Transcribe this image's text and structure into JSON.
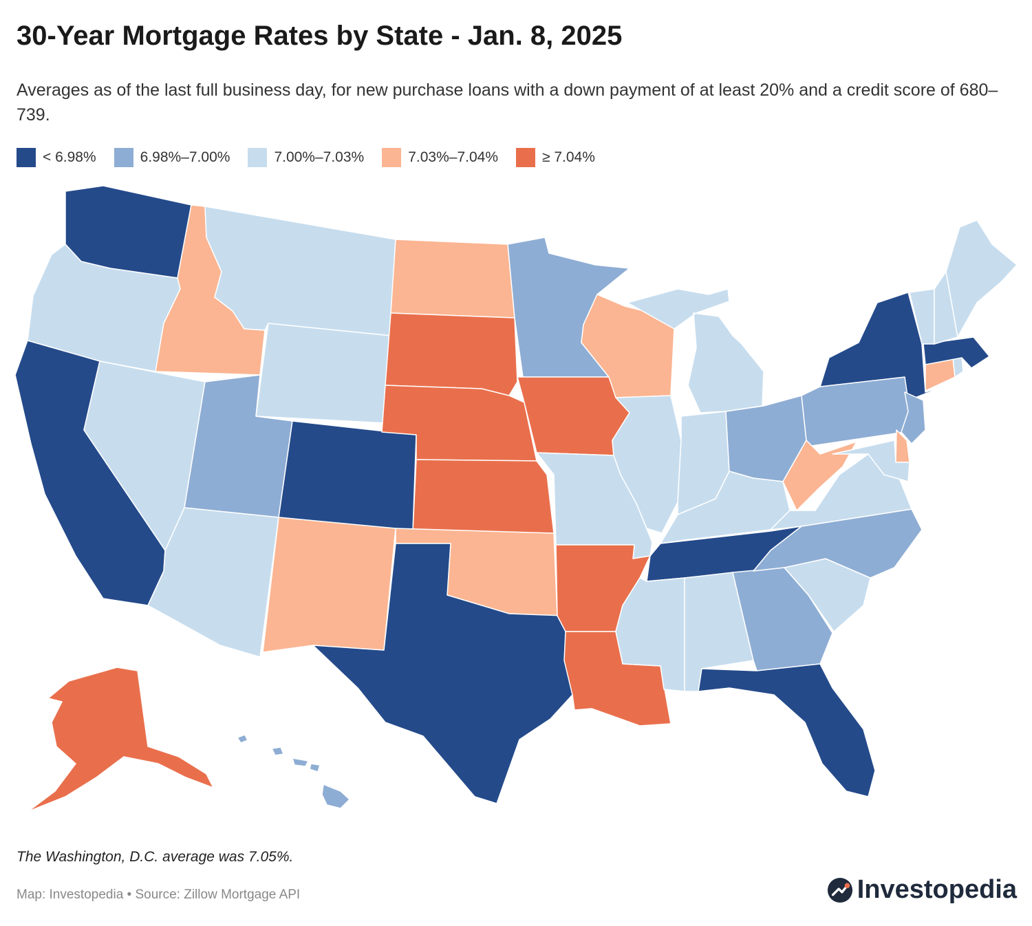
{
  "title": "30-Year Mortgage Rates by State - Jan. 8, 2025",
  "subtitle": "Averages as of the last full business day, for new purchase loans with a down payment of at least 20% and a credit score of 680–739.",
  "legend": [
    {
      "label": "< 6.98%",
      "color": "#244a8a"
    },
    {
      "label": "6.98%–7.00%",
      "color": "#8eadd4"
    },
    {
      "label": "7.00%–7.03%",
      "color": "#c7ddee"
    },
    {
      "label": "7.03%–7.04%",
      "color": "#fbb592"
    },
    {
      "label": "≥ 7.04%",
      "color": "#e96f4c"
    }
  ],
  "map": {
    "states": {
      "WA": 0,
      "CA": 0,
      "CO": 0,
      "TX": 0,
      "TN": 0,
      "FL": 0,
      "NY": 0,
      "MA": 0,
      "MN": 1,
      "UT": 1,
      "OH": 1,
      "PA": 1,
      "NJ": 1,
      "NC": 1,
      "GA": 1,
      "HI": 1,
      "OR": 2,
      "MT": 2,
      "WY": 2,
      "NV": 2,
      "AZ": 2,
      "MO": 2,
      "IL": 2,
      "IN": 2,
      "MI": 2,
      "KY": 2,
      "VA": 2,
      "SC": 2,
      "AL": 2,
      "MS": 2,
      "ME": 2,
      "VT": 2,
      "NH": 2,
      "MD": 2,
      "RI": 2,
      "ID": 3,
      "ND": 3,
      "WI": 3,
      "NM": 3,
      "OK": 3,
      "WV": 3,
      "CT": 3,
      "DE": 3,
      "SD": 4,
      "NE": 4,
      "KS": 4,
      "IA": 4,
      "AR": 4,
      "LA": 4,
      "AK": 4
    }
  },
  "note": "The Washington, D.C. average was 7.05%.",
  "source": "Map: Investopedia • Source: Zillow Mortgage API",
  "brand": {
    "name": "Investopedia",
    "icon": "investopedia-logo-icon"
  }
}
